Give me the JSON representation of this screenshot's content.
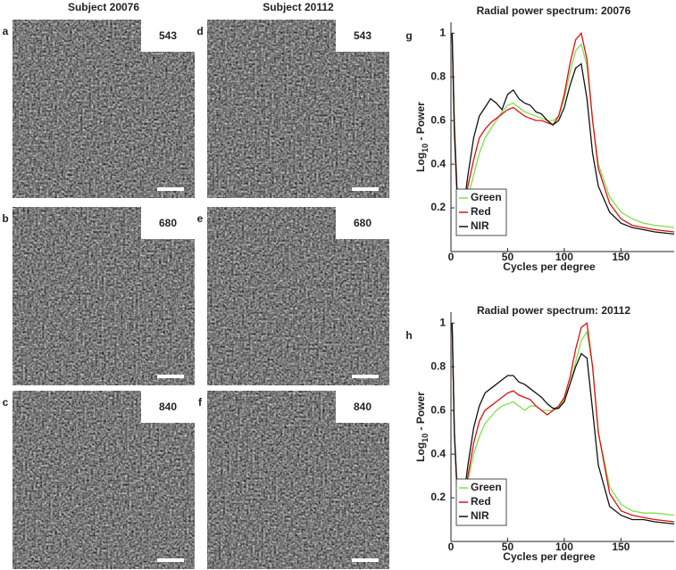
{
  "figure": {
    "columns": [
      "Subject 20076",
      "Subject 20112"
    ],
    "panels": [
      {
        "letter": "a",
        "label": "543",
        "color": "#5cb85c"
      },
      {
        "letter": "b",
        "label": "680",
        "color": "#e01010"
      },
      {
        "letter": "c",
        "label": "840",
        "color": "#a23a3a"
      },
      {
        "letter": "d",
        "label": "543",
        "color": "#5cb85c"
      },
      {
        "letter": "e",
        "label": "680",
        "color": "#e01010"
      },
      {
        "letter": "f",
        "label": "840",
        "color": "#a23a3a"
      }
    ]
  },
  "chart_data": [
    {
      "type": "line",
      "letter": "g",
      "title": "Radial power spectrum: 20076",
      "xlabel": "Cycles per degree",
      "ylabel": [
        "Log",
        "10",
        " - Power"
      ],
      "x": [
        1,
        3,
        6,
        10,
        15,
        20,
        25,
        30,
        35,
        40,
        45,
        50,
        55,
        60,
        65,
        70,
        75,
        80,
        85,
        90,
        95,
        100,
        105,
        110,
        115,
        120,
        125,
        130,
        140,
        150,
        160,
        170,
        180,
        197
      ],
      "xlim": [
        0,
        197
      ],
      "xticks": [
        0,
        50,
        100,
        150
      ],
      "ylim": [
        0,
        1.05
      ],
      "yticks": [
        0.2,
        0.4,
        0.6,
        0.8,
        1
      ],
      "legend": "lower left",
      "series": [
        {
          "name": "Green",
          "color": "#7ee04a",
          "values": [
            1.0,
            0.6,
            0.2,
            0.15,
            0.25,
            0.35,
            0.45,
            0.52,
            0.56,
            0.6,
            0.64,
            0.67,
            0.68,
            0.66,
            0.64,
            0.63,
            0.62,
            0.61,
            0.6,
            0.6,
            0.62,
            0.7,
            0.82,
            0.92,
            0.95,
            0.85,
            0.6,
            0.4,
            0.25,
            0.18,
            0.15,
            0.13,
            0.12,
            0.11
          ]
        },
        {
          "name": "Red",
          "color": "#e01010",
          "values": [
            1.0,
            0.58,
            0.2,
            0.15,
            0.3,
            0.42,
            0.52,
            0.56,
            0.59,
            0.61,
            0.63,
            0.65,
            0.66,
            0.64,
            0.62,
            0.61,
            0.6,
            0.6,
            0.59,
            0.58,
            0.62,
            0.72,
            0.86,
            0.97,
            1.0,
            0.88,
            0.6,
            0.38,
            0.22,
            0.15,
            0.12,
            0.11,
            0.1,
            0.09
          ]
        },
        {
          "name": "NIR",
          "color": "#111111",
          "values": [
            1.0,
            0.55,
            0.18,
            0.15,
            0.35,
            0.52,
            0.62,
            0.66,
            0.7,
            0.68,
            0.65,
            0.72,
            0.74,
            0.7,
            0.68,
            0.67,
            0.64,
            0.63,
            0.6,
            0.58,
            0.6,
            0.66,
            0.76,
            0.84,
            0.86,
            0.7,
            0.45,
            0.3,
            0.18,
            0.13,
            0.11,
            0.1,
            0.09,
            0.08
          ]
        }
      ]
    },
    {
      "type": "line",
      "letter": "h",
      "title": "Radial power spectrum: 20112",
      "xlabel": "Cycles per degree",
      "ylabel": [
        "Log",
        "10",
        " - Power"
      ],
      "x": [
        1,
        3,
        6,
        10,
        15,
        20,
        25,
        30,
        35,
        40,
        45,
        50,
        55,
        60,
        65,
        70,
        75,
        80,
        85,
        90,
        95,
        100,
        105,
        110,
        115,
        120,
        125,
        130,
        140,
        150,
        160,
        170,
        180,
        197
      ],
      "xlim": [
        0,
        197
      ],
      "xticks": [
        0,
        50,
        100,
        150
      ],
      "ylim": [
        0,
        1.05
      ],
      "yticks": [
        0.2,
        0.4,
        0.6,
        0.8,
        1
      ],
      "legend": "lower left",
      "series": [
        {
          "name": "Green",
          "color": "#7ee04a",
          "values": [
            1.0,
            0.5,
            0.18,
            0.15,
            0.28,
            0.4,
            0.48,
            0.54,
            0.57,
            0.6,
            0.62,
            0.63,
            0.64,
            0.62,
            0.6,
            0.62,
            0.62,
            0.6,
            0.6,
            0.6,
            0.61,
            0.65,
            0.72,
            0.82,
            0.92,
            0.96,
            0.8,
            0.5,
            0.25,
            0.17,
            0.14,
            0.13,
            0.13,
            0.12
          ]
        },
        {
          "name": "Red",
          "color": "#e01010",
          "values": [
            1.0,
            0.5,
            0.18,
            0.15,
            0.3,
            0.45,
            0.55,
            0.6,
            0.62,
            0.64,
            0.66,
            0.68,
            0.69,
            0.67,
            0.66,
            0.65,
            0.62,
            0.6,
            0.58,
            0.6,
            0.62,
            0.66,
            0.75,
            0.88,
            0.98,
            1.0,
            0.8,
            0.5,
            0.22,
            0.14,
            0.12,
            0.11,
            0.1,
            0.09
          ]
        },
        {
          "name": "NIR",
          "color": "#111111",
          "values": [
            1.0,
            0.5,
            0.16,
            0.15,
            0.35,
            0.52,
            0.62,
            0.68,
            0.7,
            0.72,
            0.74,
            0.76,
            0.76,
            0.73,
            0.72,
            0.7,
            0.68,
            0.66,
            0.63,
            0.61,
            0.61,
            0.64,
            0.72,
            0.8,
            0.86,
            0.84,
            0.6,
            0.35,
            0.16,
            0.12,
            0.1,
            0.1,
            0.09,
            0.08
          ]
        }
      ]
    }
  ]
}
